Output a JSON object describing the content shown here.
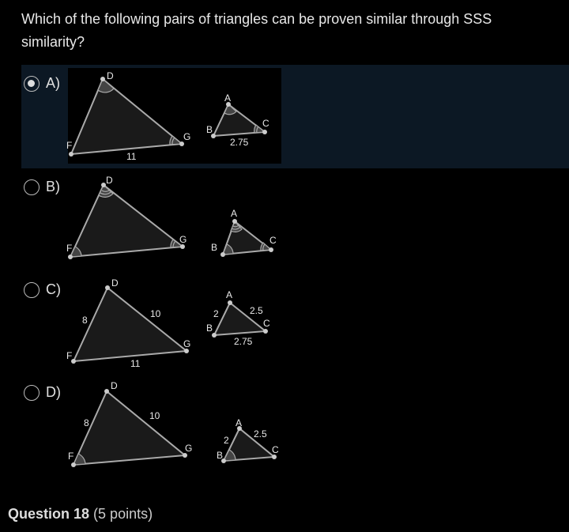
{
  "question": "Which of the following pairs of triangles can be proven similar through SSS similarity?",
  "options": [
    {
      "letter": "A)",
      "selected": true,
      "big": {
        "labels": [
          "D",
          "F",
          "G"
        ],
        "sides": {
          "FG": "11"
        }
      },
      "small": {
        "labels": [
          "A",
          "B",
          "C"
        ],
        "sides": {
          "BC": "2.75"
        }
      }
    },
    {
      "letter": "B)",
      "selected": false,
      "big": {
        "labels": [
          "D",
          "F",
          "G"
        ]
      },
      "small": {
        "labels": [
          "A",
          "B",
          "C"
        ]
      }
    },
    {
      "letter": "C)",
      "selected": false,
      "big": {
        "labels": [
          "D",
          "F",
          "G"
        ],
        "sides": {
          "FD": "8",
          "DG": "10",
          "FG": "11"
        }
      },
      "small": {
        "labels": [
          "A",
          "B",
          "C"
        ],
        "sides": {
          "AB": "2",
          "AC": "2.5",
          "BC": "2.75"
        }
      }
    },
    {
      "letter": "D)",
      "selected": false,
      "big": {
        "labels": [
          "D",
          "F",
          "G"
        ],
        "sides": {
          "FD": "8",
          "DG": "10"
        }
      },
      "small": {
        "labels": [
          "A",
          "B",
          "C"
        ],
        "sides": {
          "AB": "2",
          "AC": "2.5"
        }
      }
    }
  ],
  "footer": {
    "title": "Question 18",
    "points": "(5 points)"
  },
  "colors": {
    "selected_band": "#0c1824",
    "triangle_fill": "#1a1a1a",
    "triangle_stroke": "#aaaaaa"
  }
}
